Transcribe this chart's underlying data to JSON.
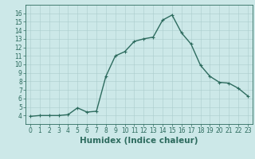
{
  "x": [
    0,
    1,
    2,
    3,
    4,
    5,
    6,
    7,
    8,
    9,
    10,
    11,
    12,
    13,
    14,
    15,
    16,
    17,
    18,
    19,
    20,
    21,
    22,
    23
  ],
  "y": [
    3.9,
    4.0,
    4.0,
    4.0,
    4.1,
    4.9,
    4.4,
    4.5,
    8.6,
    11.0,
    11.5,
    12.7,
    13.0,
    13.2,
    15.2,
    15.8,
    13.7,
    12.4,
    9.9,
    8.6,
    7.9,
    7.8,
    7.2,
    6.3
  ],
  "xlabel": "Humidex (Indice chaleur)",
  "ylim": [
    3,
    17
  ],
  "xlim": [
    -0.5,
    23.5
  ],
  "yticks": [
    4,
    5,
    6,
    7,
    8,
    9,
    10,
    11,
    12,
    13,
    14,
    15,
    16
  ],
  "xticks": [
    0,
    1,
    2,
    3,
    4,
    5,
    6,
    7,
    8,
    9,
    10,
    11,
    12,
    13,
    14,
    15,
    16,
    17,
    18,
    19,
    20,
    21,
    22,
    23
  ],
  "line_color": "#2d6b5e",
  "marker": "+",
  "bg_color": "#cce8e8",
  "grid_color": "#aacccc",
  "tick_color": "#2d6b5e",
  "label_fontsize": 5.5,
  "xlabel_fontsize": 7.5,
  "linewidth": 1.0,
  "markersize": 3.5
}
